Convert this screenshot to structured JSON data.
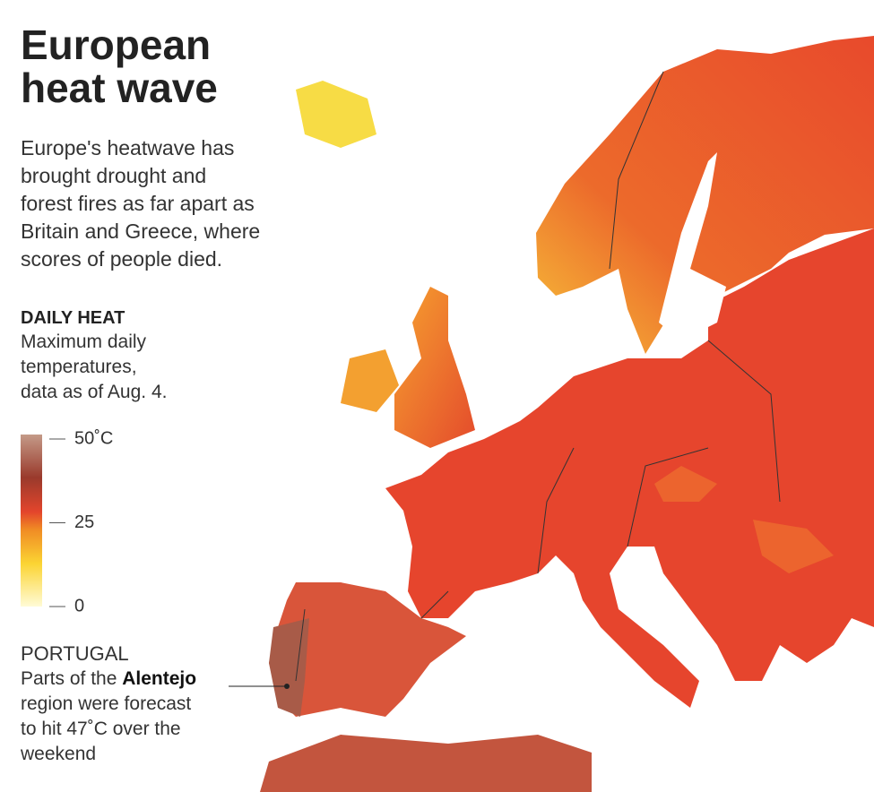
{
  "header": {
    "title": [
      "European",
      "heat wave"
    ],
    "description": [
      "Europe's heatwave has",
      "brought drought and",
      "forest fires as far apart as",
      "Britain and Greece, where",
      "scores of people died."
    ]
  },
  "legend": {
    "title": "DAILY HEAT",
    "description": [
      "Maximum daily",
      "temperatures,",
      "data as of Aug. 4."
    ],
    "range": [
      0,
      50
    ],
    "ticks": [
      {
        "value": 50,
        "label": "50˚C"
      },
      25,
      0
    ]
  },
  "annotation": {
    "heading": "PORTUGAL",
    "lead": "Parts of the",
    "highlight": "Alentejo",
    "lines": [
      "region were forecast",
      "to hit 47˚C over the",
      "weekend"
    ]
  }
}
